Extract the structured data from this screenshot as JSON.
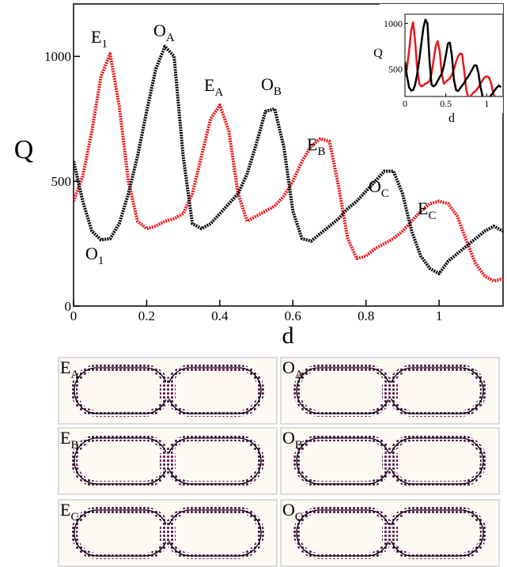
{
  "chart_data": {
    "type": "line",
    "x_label": "d",
    "y_label": "Q",
    "xlim": [
      0,
      1.175
    ],
    "ylim": [
      0,
      1210
    ],
    "xticks": [
      0,
      0.2,
      0.4,
      0.6,
      0.8,
      1
    ],
    "yticks": [
      0,
      500,
      1000
    ],
    "x": [
      0,
      0.025,
      0.05,
      0.075,
      0.1,
      0.125,
      0.15,
      0.175,
      0.2,
      0.225,
      0.25,
      0.275,
      0.3,
      0.325,
      0.35,
      0.375,
      0.4,
      0.425,
      0.45,
      0.475,
      0.5,
      0.525,
      0.55,
      0.575,
      0.6,
      0.625,
      0.65,
      0.675,
      0.7,
      0.725,
      0.75,
      0.775,
      0.8,
      0.825,
      0.85,
      0.875,
      0.9,
      0.925,
      0.95,
      0.975,
      1.0,
      1.025,
      1.05,
      1.075,
      1.1,
      1.125,
      1.15,
      1.175
    ],
    "series": [
      {
        "color": "#e8161b",
        "values": [
          420,
          520,
          700,
          920,
          1010,
          800,
          500,
          340,
          310,
          320,
          340,
          350,
          370,
          450,
          600,
          750,
          805,
          700,
          450,
          340,
          360,
          380,
          400,
          440,
          500,
          580,
          640,
          670,
          660,
          480,
          270,
          190,
          200,
          230,
          250,
          270,
          300,
          340,
          380,
          410,
          420,
          410,
          360,
          260,
          170,
          120,
          100,
          110
        ]
      },
      {
        "color": "#000000",
        "values": [
          580,
          420,
          300,
          265,
          270,
          330,
          450,
          600,
          780,
          950,
          1040,
          1000,
          600,
          330,
          310,
          330,
          370,
          410,
          450,
          530,
          650,
          780,
          790,
          640,
          380,
          270,
          260,
          290,
          320,
          350,
          390,
          420,
          460,
          500,
          540,
          540,
          450,
          300,
          200,
          150,
          130,
          180,
          210,
          240,
          270,
          300,
          320,
          300
        ]
      }
    ],
    "annotations": [
      {
        "text": "E",
        "sub": "1"
      },
      {
        "text": "O",
        "sub": "A"
      },
      {
        "text": "E",
        "sub": "A"
      },
      {
        "text": "O",
        "sub": "B"
      },
      {
        "text": "E",
        "sub": "B"
      },
      {
        "text": "O",
        "sub": "C"
      },
      {
        "text": "E",
        "sub": "C"
      },
      {
        "text": "O",
        "sub": "1"
      }
    ],
    "inset": {
      "x_label": "d",
      "y_label": "Q",
      "xlim": [
        0,
        1.2
      ],
      "ylim": [
        200,
        1100
      ],
      "xticks": [
        0,
        0.5,
        1
      ],
      "yticks": [
        500,
        1000
      ]
    }
  },
  "panels": [
    {
      "text": "E",
      "sub": "A"
    },
    {
      "text": "O",
      "sub": "A"
    },
    {
      "text": "E",
      "sub": "B"
    },
    {
      "text": "O",
      "sub": "B"
    },
    {
      "text": "E",
      "sub": "C"
    },
    {
      "text": "O",
      "sub": "C"
    }
  ]
}
